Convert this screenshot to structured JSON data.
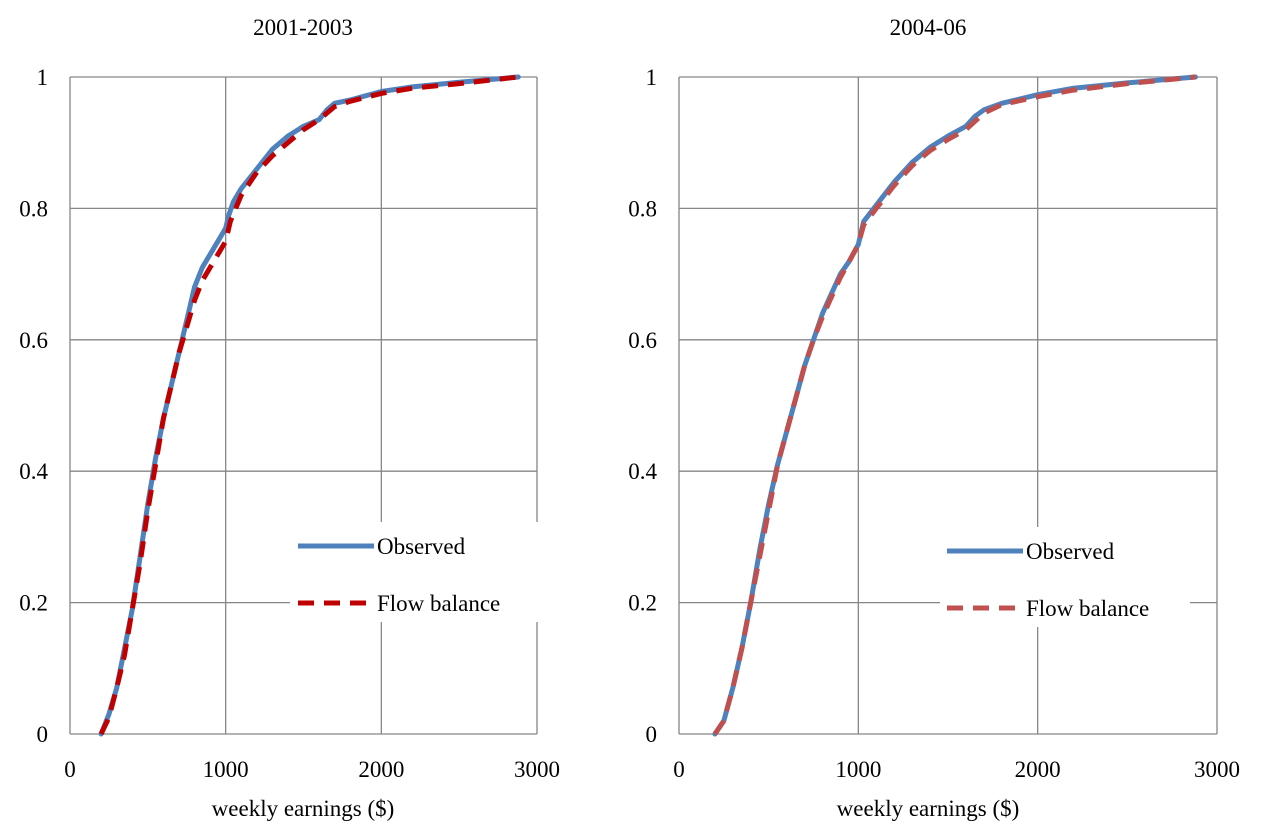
{
  "chart_data": [
    {
      "type": "line",
      "title": "2001-2003",
      "xlabel": "weekly earnings ($)",
      "ylabel": "",
      "xlim": [
        0,
        3000
      ],
      "ylim": [
        0,
        1
      ],
      "x_ticks": [
        "0",
        "1000",
        "2000",
        "3000"
      ],
      "y_ticks": [
        "0",
        "0.2",
        "0.4",
        "0.6",
        "0.8",
        "1"
      ],
      "grid": true,
      "legend_position": "lower-right",
      "series": [
        {
          "name": "Observed",
          "color": "#4f81bd",
          "style": "solid",
          "points": [
            [
              200,
              0
            ],
            [
              250,
              0.03
            ],
            [
              300,
              0.07
            ],
            [
              350,
              0.13
            ],
            [
              400,
              0.19
            ],
            [
              450,
              0.27
            ],
            [
              500,
              0.35
            ],
            [
              550,
              0.42
            ],
            [
              600,
              0.48
            ],
            [
              650,
              0.53
            ],
            [
              700,
              0.58
            ],
            [
              750,
              0.63
            ],
            [
              800,
              0.68
            ],
            [
              850,
              0.71
            ],
            [
              900,
              0.73
            ],
            [
              950,
              0.75
            ],
            [
              1000,
              0.77
            ],
            [
              1020,
              0.79
            ],
            [
              1050,
              0.81
            ],
            [
              1100,
              0.83
            ],
            [
              1200,
              0.86
            ],
            [
              1300,
              0.89
            ],
            [
              1400,
              0.91
            ],
            [
              1500,
              0.925
            ],
            [
              1600,
              0.935
            ],
            [
              1650,
              0.95
            ],
            [
              1700,
              0.96
            ],
            [
              1800,
              0.965
            ],
            [
              2000,
              0.978
            ],
            [
              2200,
              0.985
            ],
            [
              2500,
              0.992
            ],
            [
              2880,
              1.0
            ]
          ]
        },
        {
          "name": "Flow balance",
          "color": "#c00000",
          "style": "dashed",
          "points": [
            [
              200,
              0
            ],
            [
              250,
              0.025
            ],
            [
              300,
              0.07
            ],
            [
              350,
              0.12
            ],
            [
              400,
              0.19
            ],
            [
              450,
              0.26
            ],
            [
              500,
              0.34
            ],
            [
              550,
              0.41
            ],
            [
              600,
              0.48
            ],
            [
              650,
              0.53
            ],
            [
              700,
              0.58
            ],
            [
              750,
              0.62
            ],
            [
              800,
              0.66
            ],
            [
              850,
              0.69
            ],
            [
              900,
              0.71
            ],
            [
              950,
              0.73
            ],
            [
              1000,
              0.75
            ],
            [
              1030,
              0.78
            ],
            [
              1100,
              0.82
            ],
            [
              1200,
              0.855
            ],
            [
              1300,
              0.88
            ],
            [
              1400,
              0.9
            ],
            [
              1500,
              0.92
            ],
            [
              1600,
              0.935
            ],
            [
              1700,
              0.955
            ],
            [
              1800,
              0.963
            ],
            [
              2000,
              0.975
            ],
            [
              2200,
              0.983
            ],
            [
              2500,
              0.99
            ],
            [
              2880,
              1.0
            ]
          ]
        }
      ]
    },
    {
      "type": "line",
      "title": "2004-06",
      "xlabel": "weekly earnings ($)",
      "ylabel": "",
      "xlim": [
        0,
        3000
      ],
      "ylim": [
        0,
        1
      ],
      "x_ticks": [
        "0",
        "1000",
        "2000",
        "3000"
      ],
      "y_ticks": [
        "0",
        "0.2",
        "0.4",
        "0.6",
        "0.8",
        "1"
      ],
      "grid": true,
      "legend_position": "lower-right",
      "series": [
        {
          "name": "Observed",
          "color": "#4f81bd",
          "style": "solid",
          "points": [
            [
              200,
              0
            ],
            [
              250,
              0.02
            ],
            [
              300,
              0.07
            ],
            [
              350,
              0.13
            ],
            [
              400,
              0.2
            ],
            [
              450,
              0.28
            ],
            [
              500,
              0.35
            ],
            [
              550,
              0.41
            ],
            [
              600,
              0.46
            ],
            [
              650,
              0.51
            ],
            [
              700,
              0.56
            ],
            [
              750,
              0.6
            ],
            [
              800,
              0.64
            ],
            [
              850,
              0.67
            ],
            [
              900,
              0.7
            ],
            [
              950,
              0.72
            ],
            [
              1000,
              0.745
            ],
            [
              1030,
              0.78
            ],
            [
              1100,
              0.805
            ],
            [
              1200,
              0.84
            ],
            [
              1300,
              0.87
            ],
            [
              1400,
              0.893
            ],
            [
              1500,
              0.91
            ],
            [
              1600,
              0.925
            ],
            [
              1650,
              0.94
            ],
            [
              1700,
              0.95
            ],
            [
              1800,
              0.96
            ],
            [
              2000,
              0.973
            ],
            [
              2200,
              0.983
            ],
            [
              2500,
              0.991
            ],
            [
              2880,
              1.0
            ]
          ]
        },
        {
          "name": "Flow balance",
          "color": "#c0504d",
          "style": "dashed",
          "points": [
            [
              200,
              0
            ],
            [
              250,
              0.02
            ],
            [
              300,
              0.07
            ],
            [
              350,
              0.13
            ],
            [
              400,
              0.2
            ],
            [
              450,
              0.27
            ],
            [
              500,
              0.34
            ],
            [
              550,
              0.41
            ],
            [
              600,
              0.46
            ],
            [
              650,
              0.51
            ],
            [
              700,
              0.56
            ],
            [
              750,
              0.6
            ],
            [
              800,
              0.635
            ],
            [
              850,
              0.665
            ],
            [
              900,
              0.695
            ],
            [
              950,
              0.72
            ],
            [
              1000,
              0.745
            ],
            [
              1030,
              0.775
            ],
            [
              1100,
              0.8
            ],
            [
              1200,
              0.835
            ],
            [
              1300,
              0.865
            ],
            [
              1400,
              0.888
            ],
            [
              1500,
              0.905
            ],
            [
              1600,
              0.92
            ],
            [
              1700,
              0.945
            ],
            [
              1800,
              0.958
            ],
            [
              2000,
              0.97
            ],
            [
              2200,
              0.98
            ],
            [
              2500,
              0.99
            ],
            [
              2880,
              1.0
            ]
          ]
        }
      ]
    }
  ]
}
